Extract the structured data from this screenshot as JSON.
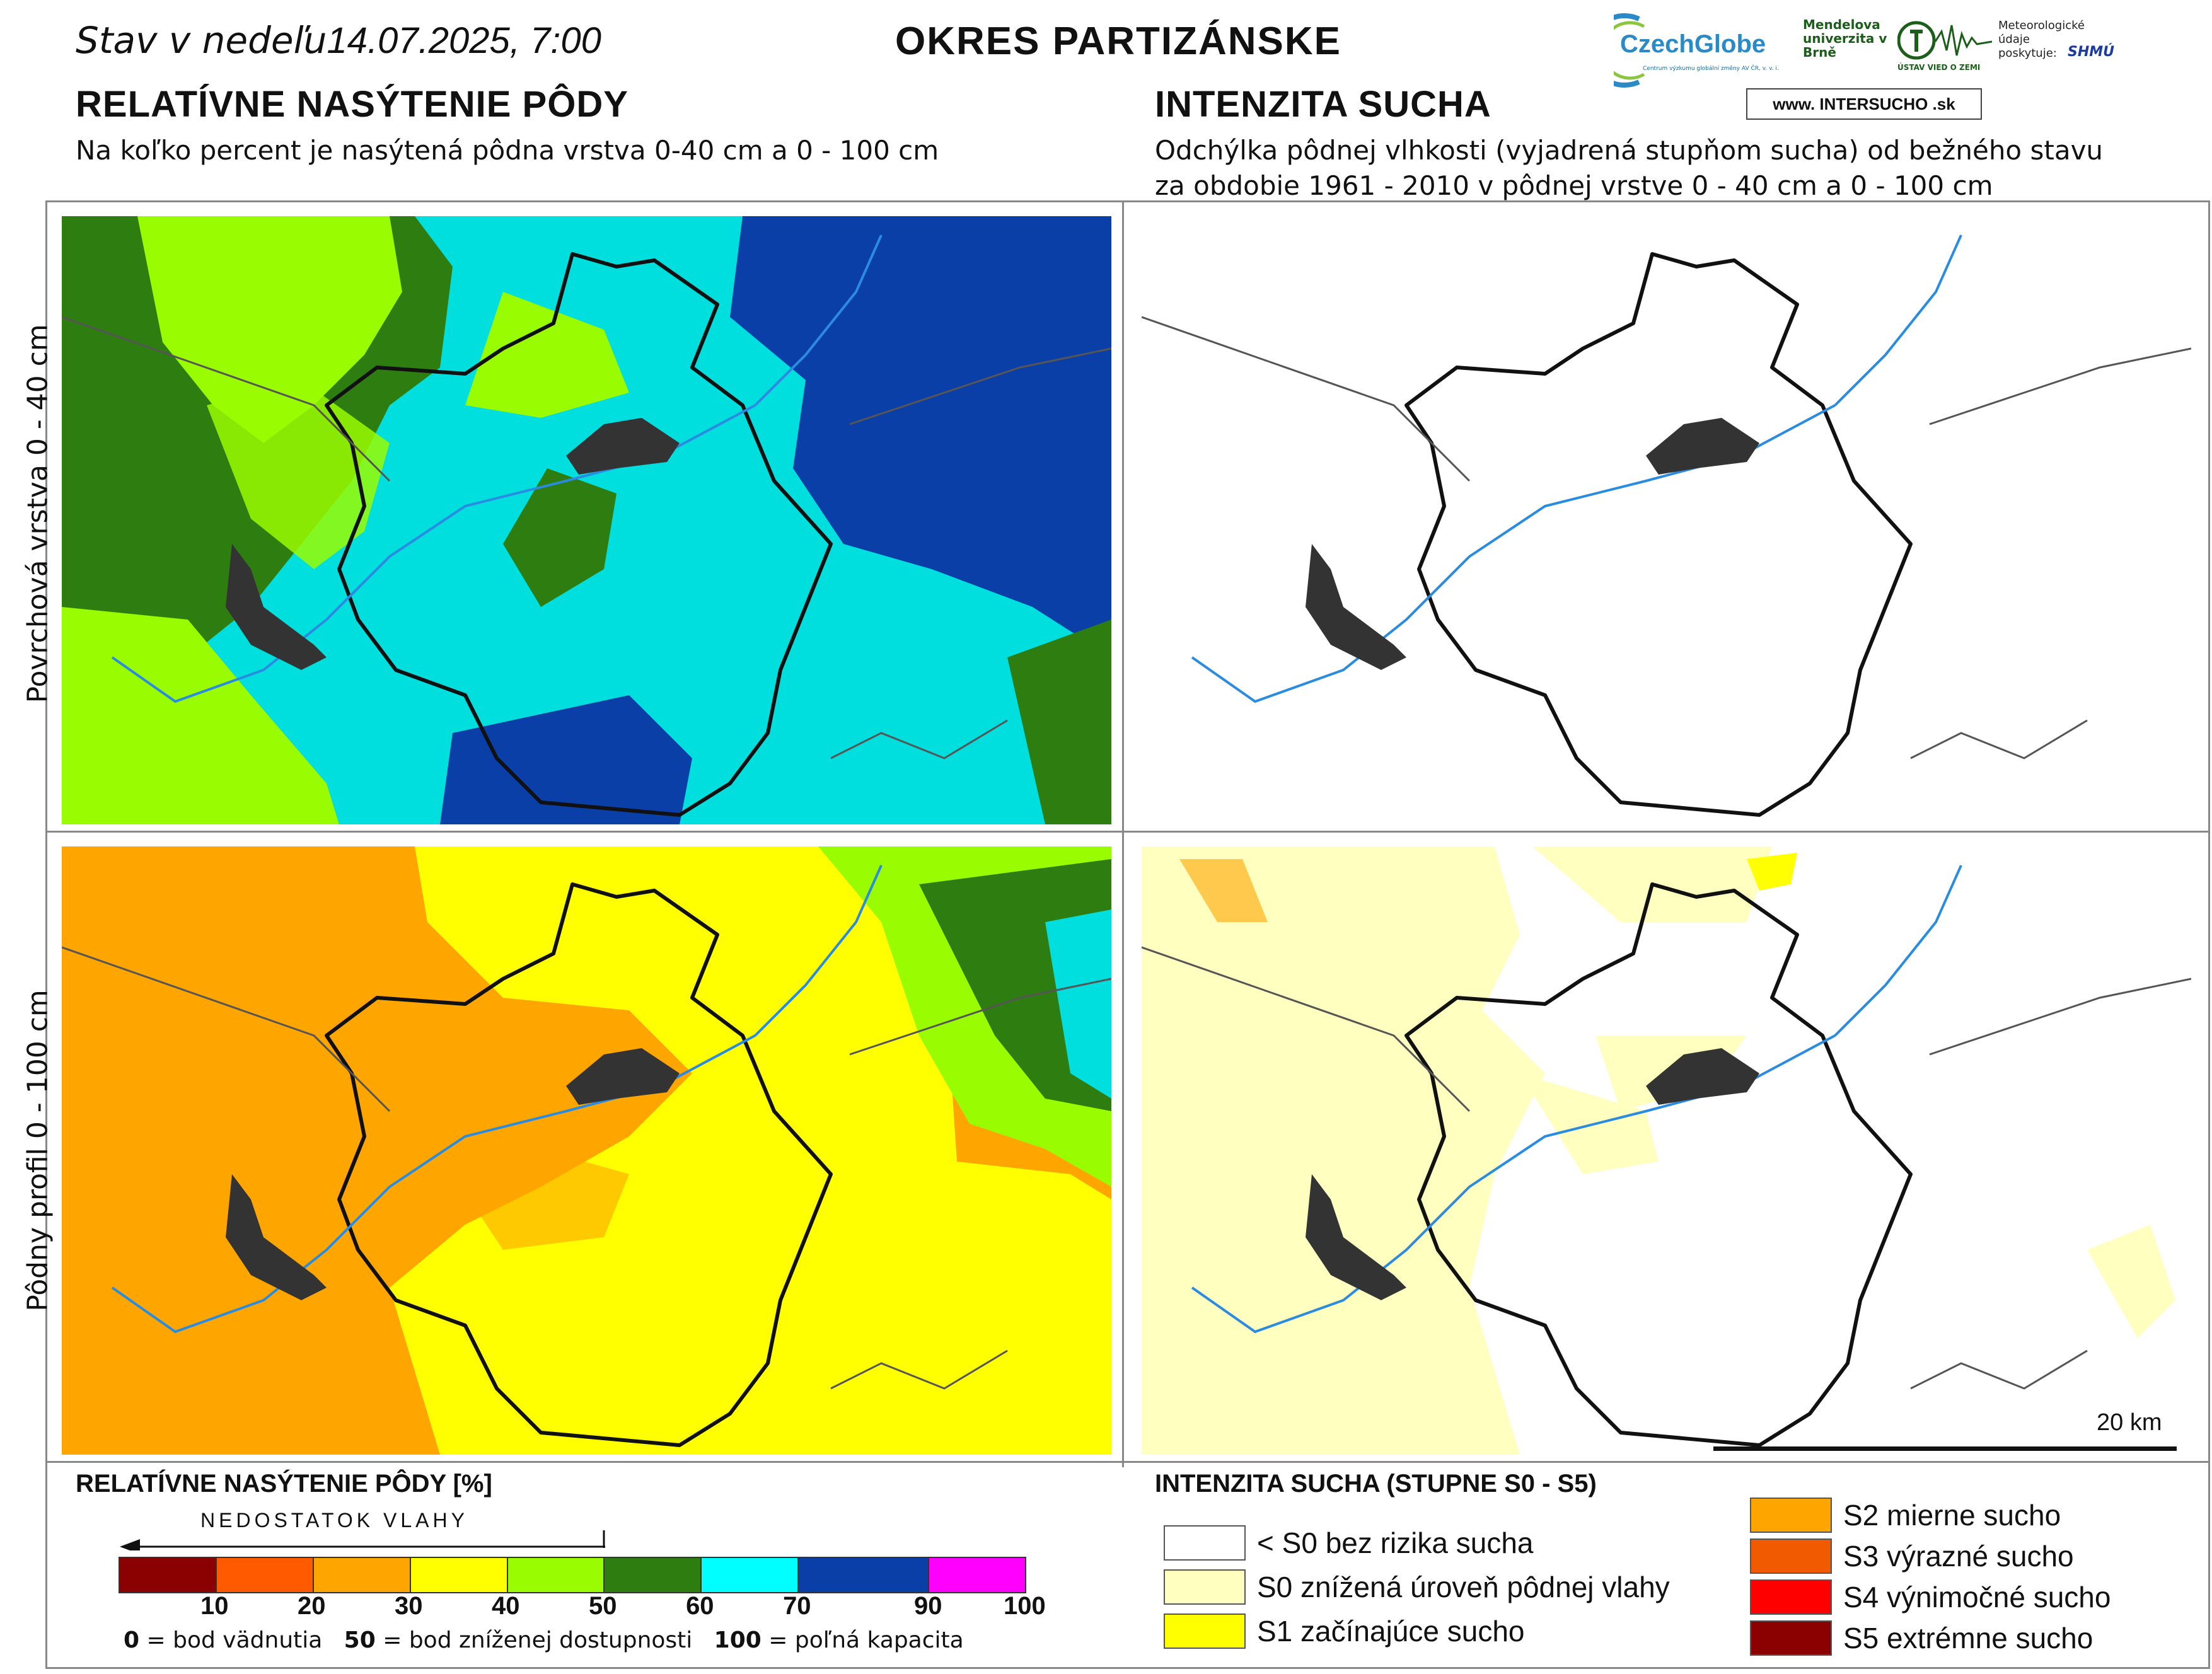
{
  "header": {
    "status_prefix": "Stav v nedeľu",
    "status_date": "14.07.2025, 7:00",
    "district": "OKRES  PARTIZÁNSKE"
  },
  "logos": {
    "czechglobe": "CzechGlobe",
    "czechglobe_sub": "Centrum výzkumu globální změny AV ČR, v. v. i.",
    "mendel": "Mendelova univerzita v Brně",
    "uvz": "ÚSTAV VIED O ZEMI",
    "met": "Meteorologické údaje poskytuje:",
    "shmu": "SHMÚ",
    "intersucho": "www. INTERSUCHO .sk"
  },
  "left_section": {
    "title": "RELATÍVNE NASÝTENIE PÔDY",
    "subtitle": "Na koľko percent je nasýtená pôdna vrstva 0-40 cm a 0 - 100 cm"
  },
  "right_section": {
    "title": "INTENZITA SUCHA",
    "subtitle_line1": "Odchýlka pôdnej vlhkosti (vyjadrená stupňom sucha) od bežného stavu",
    "subtitle_line2": "za obdobie 1961 - 2010 v pôdnej vrstve 0 - 40 cm a 0 - 100 cm"
  },
  "rows": {
    "top_label": "Povrchová vrstva 0 - 40 cm",
    "bottom_label": "Pôdny profil 0 - 100 cm"
  },
  "scale_bar": "20 km",
  "saturation_legend": {
    "title": "RELATÍVNE NASÝTENIE PÔDY [%]",
    "arrow_label": "NEDOSTATOK VLAHY",
    "colors": [
      "#8b0000",
      "#ff5a00",
      "#ffa500",
      "#ffff00",
      "#9afc00",
      "#2e7d10",
      "#00ffff",
      "#0b3fa8",
      "#ff00ff"
    ],
    "ticks": [
      "10",
      "20",
      "30",
      "40",
      "50",
      "60",
      "70",
      "90",
      "100"
    ],
    "note_0_val": "0",
    "note_0_text": " = bod vädnutia",
    "note_50_val": "50",
    "note_50_text": " = bod zníženej dostupnosti",
    "note_100_val": "100",
    "note_100_text": " = poľná kapacita"
  },
  "drought_legend": {
    "title": "INTENZITA SUCHA (STUPNE S0 - S5)",
    "items_left": [
      {
        "color": "#ffffff",
        "label": "< S0 bez rizika sucha"
      },
      {
        "color": "#ffffc0",
        "label": "S0 znížená úroveň pôdnej vlahy"
      },
      {
        "color": "#ffff00",
        "label": "S1 začínajúce sucho"
      }
    ],
    "items_right": [
      {
        "color": "#ffa500",
        "label": "S2 mierne sucho"
      },
      {
        "color": "#f25a00",
        "label": "S3 výrazné sucho"
      },
      {
        "color": "#ff0000",
        "label": "S4 výnimočné sucho"
      },
      {
        "color": "#8b0000",
        "label": "S5 extrémne sucho"
      }
    ]
  }
}
